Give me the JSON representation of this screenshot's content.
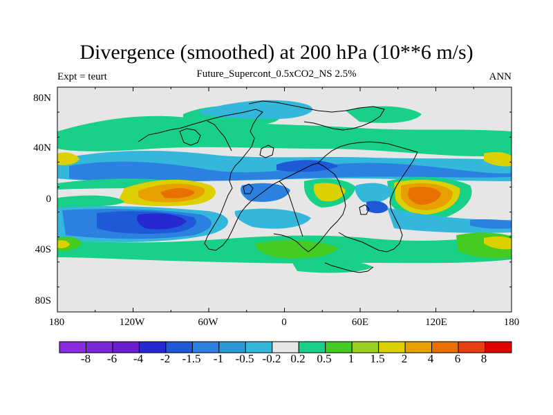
{
  "title": "Divergence (smoothed) at 200 hPa (10**6 m/s)",
  "left_label": "Expt = teurt",
  "center_label": "Future_Supercont_0.5xCO2_NS 2.5%",
  "right_label": "ANN",
  "y_ticks": [
    "80N",
    "40N",
    "0",
    "40S",
    "80S"
  ],
  "x_ticks": [
    "180",
    "120W",
    "60W",
    "0",
    "60E",
    "120E",
    "180"
  ],
  "colorbar": {
    "labels": [
      "-8",
      "-6",
      "-4",
      "-2",
      "-1.5",
      "-1",
      "-0.5",
      "-0.2",
      "0.2",
      "0.5",
      "1",
      "1.5",
      "2",
      "4",
      "6",
      "8"
    ],
    "colors": [
      "#8a2be2",
      "#7a28d8",
      "#6a1ed0",
      "#2828d0",
      "#1e5ad8",
      "#2c80e0",
      "#2b98d8",
      "#33b8dc",
      "#e6e6e6",
      "#18d088",
      "#44cc22",
      "#99d020",
      "#ddd000",
      "#e6a000",
      "#e86f00",
      "#e84010",
      "#e00000"
    ]
  },
  "map": {
    "background": "#e6e6e6",
    "land_outline": "coastline-outline",
    "projection": "cylindrical-equidistant",
    "lon_range": [
      -180,
      180
    ],
    "lat_range": [
      -90,
      90
    ]
  }
}
